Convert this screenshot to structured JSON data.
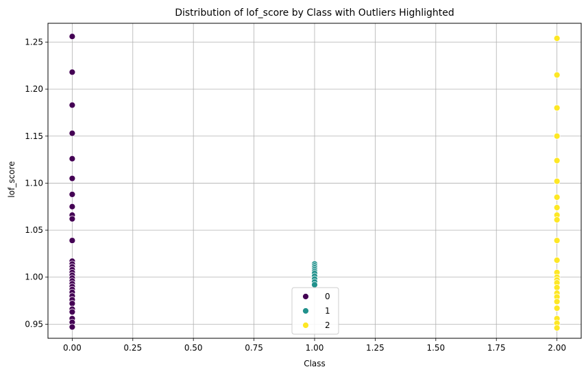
{
  "chart_data": {
    "type": "scatter",
    "title": "Distribution of lof_score by Class with Outliers Highlighted",
    "xlabel": "Class",
    "ylabel": "lof_score",
    "xlim": [
      -0.1,
      2.1
    ],
    "ylim": [
      0.935,
      1.27
    ],
    "xticks": [
      0.0,
      0.25,
      0.5,
      0.75,
      1.0,
      1.25,
      1.5,
      1.75,
      2.0
    ],
    "xtick_labels": [
      "0.00",
      "0.25",
      "0.50",
      "0.75",
      "1.00",
      "1.25",
      "1.50",
      "1.75",
      "2.00"
    ],
    "yticks": [
      0.95,
      1.0,
      1.05,
      1.1,
      1.15,
      1.2,
      1.25
    ],
    "ytick_labels": [
      "0.95",
      "1.00",
      "1.05",
      "1.10",
      "1.15",
      "1.20",
      "1.25"
    ],
    "grid": true,
    "legend_position": "bottom-center",
    "series": [
      {
        "name": "0",
        "color": "#440154",
        "x": [
          0,
          0,
          0,
          0,
          0,
          0,
          0,
          0,
          0,
          0,
          0,
          0,
          0,
          0,
          0,
          0,
          0,
          0,
          0,
          0,
          0,
          0,
          0,
          0,
          0,
          0,
          0,
          0,
          0,
          0,
          0
        ],
        "y": [
          1.256,
          1.218,
          1.183,
          1.153,
          1.126,
          1.105,
          1.088,
          1.075,
          1.066,
          1.062,
          1.039,
          1.017,
          1.014,
          1.011,
          1.008,
          1.005,
          1.002,
          0.999,
          0.996,
          0.993,
          0.99,
          0.987,
          0.984,
          0.98,
          0.976,
          0.972,
          0.966,
          0.963,
          0.956,
          0.952,
          0.947
        ]
      },
      {
        "name": "1",
        "color": "#21918c",
        "x": [
          1,
          1,
          1,
          1,
          1,
          1,
          1,
          1,
          1,
          1
        ],
        "y": [
          1.014,
          1.012,
          1.01,
          1.008,
          1.006,
          1.004,
          1.001,
          0.998,
          0.995,
          0.992
        ]
      },
      {
        "name": "2",
        "color": "#fde725",
        "x": [
          2,
          2,
          2,
          2,
          2,
          2,
          2,
          2,
          2,
          2,
          2,
          2,
          2,
          2,
          2,
          2,
          2,
          2,
          2,
          2,
          2,
          2,
          2,
          2
        ],
        "y": [
          1.254,
          1.215,
          1.18,
          1.15,
          1.124,
          1.102,
          1.085,
          1.074,
          1.066,
          1.061,
          1.039,
          1.018,
          1.005,
          1.0,
          0.997,
          0.994,
          0.989,
          0.983,
          0.979,
          0.974,
          0.967,
          0.956,
          0.951,
          0.946
        ]
      }
    ],
    "legend": [
      {
        "label": "0",
        "color": "#440154"
      },
      {
        "label": "1",
        "color": "#21918c"
      },
      {
        "label": "2",
        "color": "#fde725"
      }
    ]
  }
}
